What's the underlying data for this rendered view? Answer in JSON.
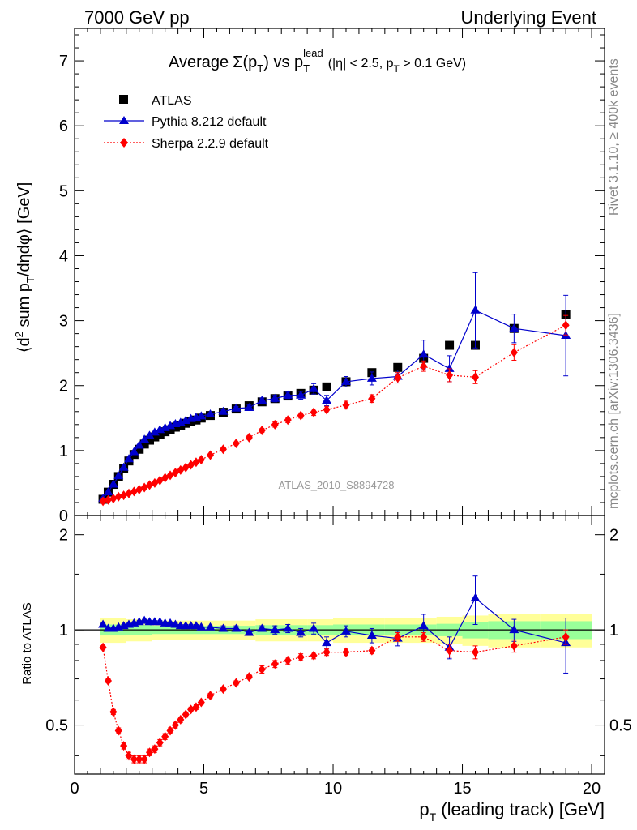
{
  "header": {
    "left": "7000 GeV pp",
    "right": "Underlying Event"
  },
  "side_labels": {
    "rivet": "Rivet 3.1.10, ≥ 400k events",
    "mcplots": "mcplots.cern.ch [arXiv:1306.3436]"
  },
  "chart_data": [
    {
      "type": "line",
      "panel": "main",
      "title_parts": {
        "average": "Average",
        "sigma": "Σ(p",
        "t1": "T",
        "close_vs": ") vs p",
        "t2": "T",
        "lead": "lead",
        "range": "(|η| < 2.5, p",
        "t3": "T",
        "tail": " > 0.1 GeV)"
      },
      "watermark": "ATLAS_2010_S8894728",
      "ylabel_parts": {
        "a": "⟨d",
        "sup": "2",
        "b": " sum p",
        "sub": "T",
        "c": "/dηdφ⟩ [GeV]"
      },
      "xlim": [
        0,
        20.5
      ],
      "ylim": [
        0,
        7.5
      ],
      "yticks": [
        0,
        1,
        2,
        3,
        4,
        5,
        6,
        7
      ],
      "ytick_labels": [
        "0",
        "1",
        "2",
        "3",
        "4",
        "5",
        "6",
        "7"
      ],
      "legend": {
        "position": "top-left",
        "entries": [
          "ATLAS",
          "Pythia 8.212 default",
          "Sherpa 2.2.9 default"
        ]
      },
      "series": [
        {
          "name": "ATLAS",
          "marker": "square",
          "color": "#000000",
          "x": [
            1.1,
            1.3,
            1.5,
            1.7,
            1.9,
            2.1,
            2.3,
            2.5,
            2.7,
            2.9,
            3.1,
            3.3,
            3.5,
            3.7,
            3.9,
            4.1,
            4.3,
            4.5,
            4.7,
            4.9,
            5.25,
            5.75,
            6.25,
            6.75,
            7.25,
            7.75,
            8.25,
            8.75,
            9.25,
            9.75,
            10.5,
            11.5,
            12.5,
            13.5,
            14.5,
            15.5,
            17.0,
            19.0
          ],
          "y": [
            0.25,
            0.36,
            0.48,
            0.6,
            0.72,
            0.84,
            0.94,
            1.02,
            1.1,
            1.16,
            1.21,
            1.25,
            1.29,
            1.32,
            1.36,
            1.39,
            1.42,
            1.45,
            1.47,
            1.5,
            1.54,
            1.59,
            1.64,
            1.69,
            1.75,
            1.8,
            1.84,
            1.88,
            1.93,
            1.98,
            2.06,
            2.2,
            2.28,
            2.42,
            2.62,
            2.62,
            2.88,
            3.1
          ]
        },
        {
          "name": "Pythia 8.212 default",
          "marker": "triangle",
          "color": "#0000cc",
          "x": [
            1.1,
            1.3,
            1.5,
            1.7,
            1.9,
            2.1,
            2.3,
            2.5,
            2.7,
            2.9,
            3.1,
            3.3,
            3.5,
            3.7,
            3.9,
            4.1,
            4.3,
            4.5,
            4.7,
            4.9,
            5.25,
            5.75,
            6.25,
            6.75,
            7.25,
            7.75,
            8.25,
            8.75,
            9.25,
            9.75,
            10.5,
            11.5,
            12.5,
            13.5,
            14.5,
            15.5,
            17.0,
            19.0
          ],
          "y": [
            0.26,
            0.36,
            0.48,
            0.61,
            0.74,
            0.87,
            0.98,
            1.08,
            1.17,
            1.23,
            1.28,
            1.32,
            1.35,
            1.38,
            1.41,
            1.43,
            1.46,
            1.49,
            1.51,
            1.53,
            1.56,
            1.6,
            1.65,
            1.66,
            1.77,
            1.8,
            1.85,
            1.85,
            1.95,
            1.77,
            2.06,
            2.11,
            2.14,
            2.48,
            2.26,
            3.16,
            2.88,
            2.77
          ],
          "yerr": [
            0.01,
            0.01,
            0.01,
            0.01,
            0.01,
            0.01,
            0.01,
            0.01,
            0.01,
            0.01,
            0.01,
            0.01,
            0.01,
            0.01,
            0.02,
            0.02,
            0.02,
            0.02,
            0.02,
            0.02,
            0.02,
            0.03,
            0.03,
            0.04,
            0.04,
            0.05,
            0.05,
            0.06,
            0.08,
            0.08,
            0.08,
            0.1,
            0.1,
            0.22,
            0.2,
            0.58,
            0.22,
            0.62
          ]
        },
        {
          "name": "Sherpa 2.2.9 default",
          "marker": "diamond",
          "color": "#ff0000",
          "x": [
            1.1,
            1.3,
            1.5,
            1.7,
            1.9,
            2.1,
            2.3,
            2.5,
            2.7,
            2.9,
            3.1,
            3.3,
            3.5,
            3.7,
            3.9,
            4.1,
            4.3,
            4.5,
            4.7,
            4.9,
            5.25,
            5.75,
            6.25,
            6.75,
            7.25,
            7.75,
            8.25,
            8.75,
            9.25,
            9.75,
            10.5,
            11.5,
            12.5,
            13.5,
            14.5,
            15.5,
            17.0,
            19.0
          ],
          "y": [
            0.22,
            0.24,
            0.26,
            0.29,
            0.31,
            0.34,
            0.37,
            0.4,
            0.43,
            0.47,
            0.5,
            0.54,
            0.58,
            0.62,
            0.66,
            0.7,
            0.74,
            0.78,
            0.82,
            0.86,
            0.93,
            1.02,
            1.11,
            1.2,
            1.31,
            1.4,
            1.47,
            1.54,
            1.59,
            1.63,
            1.7,
            1.8,
            2.12,
            2.3,
            2.16,
            2.13,
            2.51,
            2.93
          ],
          "yerr": [
            0.01,
            0.01,
            0.01,
            0.01,
            0.01,
            0.01,
            0.01,
            0.01,
            0.01,
            0.01,
            0.01,
            0.01,
            0.01,
            0.01,
            0.01,
            0.01,
            0.01,
            0.01,
            0.01,
            0.02,
            0.02,
            0.02,
            0.02,
            0.03,
            0.03,
            0.04,
            0.04,
            0.04,
            0.05,
            0.05,
            0.06,
            0.06,
            0.08,
            0.08,
            0.1,
            0.1,
            0.12,
            0.15
          ]
        }
      ]
    },
    {
      "type": "line",
      "panel": "ratio",
      "ylabel": "Ratio to ATLAS",
      "xlabel_parts": {
        "p": "p",
        "sub": "T",
        "rest": " (leading track) [GeV]"
      },
      "xlim": [
        0,
        20.5
      ],
      "ylim": [
        0.35,
        2.3
      ],
      "xticks": [
        0,
        5,
        10,
        15,
        20
      ],
      "xtick_labels": [
        "0",
        "5",
        "10",
        "15",
        "20"
      ],
      "yticks": [
        0.5,
        1,
        2
      ],
      "ytick_labels": [
        "0.5",
        "1",
        "2"
      ],
      "bands": {
        "x_edges": [
          1.0,
          2.0,
          3.0,
          5.0,
          7.0,
          9.0,
          10.0,
          12.0,
          14.0,
          15.0,
          16.0,
          18.0,
          20.0
        ],
        "yellow_half_width": [
          0.09,
          0.08,
          0.07,
          0.07,
          0.08,
          0.08,
          0.09,
          0.09,
          0.1,
          0.11,
          0.12,
          0.12
        ],
        "green_half_width": [
          0.04,
          0.035,
          0.03,
          0.03,
          0.035,
          0.035,
          0.04,
          0.04,
          0.045,
          0.06,
          0.065,
          0.065
        ],
        "yellow_color": "#ffff99",
        "green_color": "#99ff99"
      },
      "series": [
        {
          "name": "Pythia 8.212 default",
          "marker": "triangle",
          "color": "#0000cc",
          "x": [
            1.1,
            1.3,
            1.5,
            1.7,
            1.9,
            2.1,
            2.3,
            2.5,
            2.7,
            2.9,
            3.1,
            3.3,
            3.5,
            3.7,
            3.9,
            4.1,
            4.3,
            4.5,
            4.7,
            4.9,
            5.25,
            5.75,
            6.25,
            6.75,
            7.25,
            7.75,
            8.25,
            8.75,
            9.25,
            9.75,
            10.5,
            11.5,
            12.5,
            13.5,
            14.5,
            15.5,
            17.0,
            19.0
          ],
          "y": [
            1.04,
            1.01,
            1.01,
            1.02,
            1.03,
            1.04,
            1.05,
            1.06,
            1.07,
            1.06,
            1.06,
            1.06,
            1.05,
            1.05,
            1.04,
            1.03,
            1.03,
            1.03,
            1.03,
            1.02,
            1.02,
            1.01,
            1.01,
            0.98,
            1.01,
            1.0,
            1.01,
            0.98,
            1.01,
            0.91,
            0.99,
            0.96,
            0.94,
            1.03,
            0.88,
            1.26,
            1.0,
            0.91
          ],
          "yerr": [
            0.01,
            0.01,
            0.01,
            0.01,
            0.01,
            0.01,
            0.01,
            0.01,
            0.01,
            0.01,
            0.01,
            0.01,
            0.01,
            0.01,
            0.01,
            0.01,
            0.01,
            0.01,
            0.01,
            0.01,
            0.01,
            0.02,
            0.02,
            0.02,
            0.02,
            0.03,
            0.03,
            0.03,
            0.04,
            0.04,
            0.04,
            0.05,
            0.05,
            0.09,
            0.07,
            0.22,
            0.08,
            0.18
          ]
        },
        {
          "name": "Sherpa 2.2.9 default",
          "marker": "diamond",
          "color": "#ff0000",
          "x": [
            1.1,
            1.3,
            1.5,
            1.7,
            1.9,
            2.1,
            2.3,
            2.5,
            2.7,
            2.9,
            3.1,
            3.3,
            3.5,
            3.7,
            3.9,
            4.1,
            4.3,
            4.5,
            4.7,
            4.9,
            5.25,
            5.75,
            6.25,
            6.75,
            7.25,
            7.75,
            8.25,
            8.75,
            9.25,
            9.75,
            10.5,
            11.5,
            12.5,
            13.5,
            14.5,
            15.5,
            17.0,
            19.0
          ],
          "y": [
            0.88,
            0.69,
            0.55,
            0.48,
            0.43,
            0.4,
            0.39,
            0.39,
            0.39,
            0.41,
            0.42,
            0.44,
            0.46,
            0.48,
            0.5,
            0.52,
            0.54,
            0.56,
            0.57,
            0.59,
            0.62,
            0.65,
            0.68,
            0.71,
            0.75,
            0.78,
            0.8,
            0.82,
            0.83,
            0.85,
            0.85,
            0.86,
            0.95,
            0.95,
            0.86,
            0.85,
            0.89,
            0.95
          ],
          "yerr": [
            0.01,
            0.01,
            0.01,
            0.01,
            0.01,
            0.01,
            0.01,
            0.01,
            0.01,
            0.01,
            0.01,
            0.01,
            0.01,
            0.01,
            0.01,
            0.01,
            0.01,
            0.01,
            0.01,
            0.01,
            0.01,
            0.01,
            0.01,
            0.01,
            0.02,
            0.02,
            0.02,
            0.02,
            0.02,
            0.02,
            0.02,
            0.02,
            0.03,
            0.03,
            0.04,
            0.04,
            0.04,
            0.05
          ]
        }
      ]
    }
  ]
}
